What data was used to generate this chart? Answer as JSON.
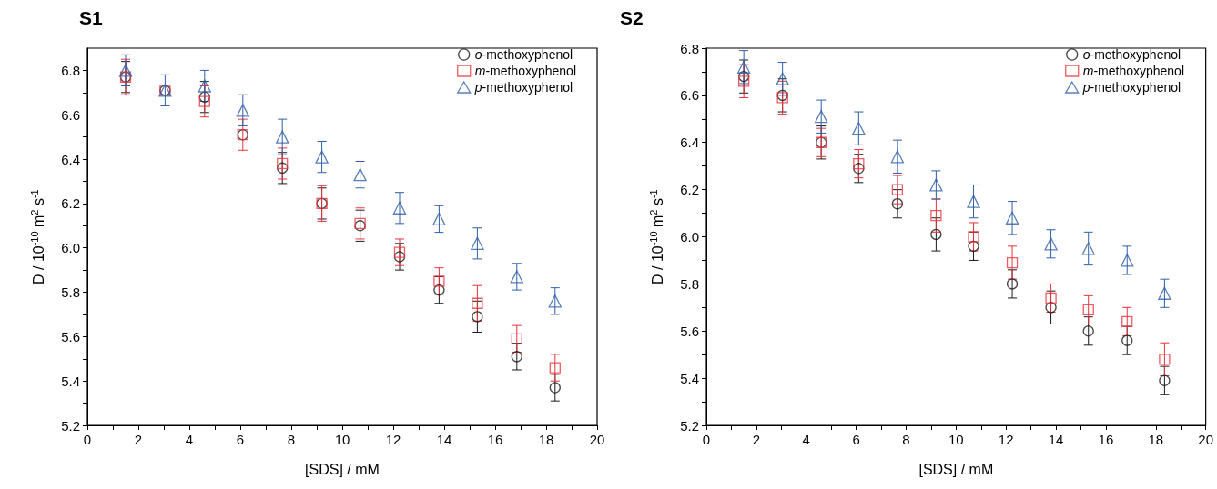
{
  "chart_data": [
    {
      "type": "scatter",
      "title": "S1",
      "xlabel": "[SDS] / mM",
      "ylabel": "D / 10$^{-10}$ m$^{2}$ s$^{-1}$",
      "x": [
        1.5,
        3.05,
        4.6,
        6.1,
        7.65,
        9.2,
        10.7,
        12.25,
        13.8,
        15.3,
        16.85,
        18.35
      ],
      "xlim": [
        0,
        20
      ],
      "xticks": [
        0,
        {
          "value": 1,
          "label": null
        },
        2,
        {
          "value": 3,
          "label": null
        },
        4,
        {
          "value": 5,
          "label": null
        },
        6,
        {
          "value": 7,
          "label": null
        },
        8,
        {
          "value": 9,
          "label": null
        },
        10,
        {
          "value": 11,
          "label": null
        },
        12,
        {
          "value": 13,
          "label": null
        },
        14,
        {
          "value": 15,
          "label": null
        },
        16,
        {
          "value": 17,
          "label": null
        },
        18,
        {
          "value": 19,
          "label": null
        },
        20
      ],
      "ylim": [
        5.2,
        6.9
      ],
      "yticks": [
        5.2,
        {
          "value": 5.3,
          "label": null
        },
        5.4,
        {
          "value": 5.5,
          "label": null
        },
        5.6,
        {
          "value": 5.7,
          "label": null
        },
        5.8,
        {
          "value": 5.9,
          "label": null
        },
        {
          "value": 6,
          "label": "6.0"
        },
        {
          "value": 6.1,
          "label": null
        },
        6.2,
        {
          "value": 6.3,
          "label": null
        },
        6.4,
        {
          "value": 6.5,
          "label": null
        },
        6.6,
        {
          "value": 6.7,
          "label": null
        },
        6.8
      ],
      "grid": false,
      "legend": "top right",
      "series": [
        {
          "name": "o-methoxyphenol",
          "color": "#1a1a1a",
          "marker": "circle",
          "values": [
            6.77,
            6.71,
            6.68,
            6.51,
            6.36,
            6.2,
            6.1,
            5.96,
            5.81,
            5.69,
            5.51,
            5.37
          ],
          "errors": [
            0.07,
            null,
            0.07,
            null,
            0.07,
            0.07,
            0.07,
            0.06,
            0.06,
            0.07,
            0.06,
            0.06
          ]
        },
        {
          "name": "m-methoxyphenol",
          "color": "#e8333c",
          "marker": "square",
          "values": [
            6.77,
            6.71,
            6.66,
            6.51,
            6.38,
            6.2,
            6.11,
            5.98,
            5.85,
            5.75,
            5.59,
            5.46
          ],
          "errors": [
            0.08,
            null,
            0.07,
            0.07,
            0.07,
            0.08,
            0.07,
            0.06,
            0.06,
            0.08,
            0.06,
            0.06
          ]
        },
        {
          "name": "p-methoxyphenol",
          "color": "#2f5fa8",
          "marker": "triangle",
          "values": [
            6.8,
            6.71,
            6.73,
            6.62,
            6.5,
            6.41,
            6.33,
            6.18,
            6.13,
            6.02,
            5.87,
            5.76
          ],
          "errors": [
            0.07,
            0.07,
            0.07,
            0.07,
            0.08,
            0.07,
            0.06,
            0.07,
            0.06,
            0.07,
            0.06,
            0.06
          ]
        }
      ]
    },
    {
      "type": "scatter",
      "title": "S2",
      "xlabel": "[SDS] / mM",
      "ylabel": "D / 10$^{-10}$ m$^{2}$ s$^{-1}$",
      "x": [
        1.5,
        3.05,
        4.6,
        6.1,
        7.65,
        9.2,
        10.7,
        12.25,
        13.8,
        15.3,
        16.85,
        18.35
      ],
      "xlim": [
        0,
        20
      ],
      "xticks": [
        0,
        {
          "value": 1,
          "label": null
        },
        2,
        {
          "value": 3,
          "label": null
        },
        4,
        {
          "value": 5,
          "label": null
        },
        6,
        {
          "value": 7,
          "label": null
        },
        8,
        {
          "value": 9,
          "label": null
        },
        10,
        {
          "value": 11,
          "label": null
        },
        12,
        {
          "value": 13,
          "label": null
        },
        14,
        {
          "value": 15,
          "label": null
        },
        16,
        {
          "value": 17,
          "label": null
        },
        18,
        {
          "value": 19,
          "label": null
        },
        20
      ],
      "ylim": [
        5.2,
        6.8
      ],
      "yticks": [
        5.2,
        {
          "value": 5.3,
          "label": null
        },
        5.4,
        {
          "value": 5.5,
          "label": null
        },
        5.6,
        {
          "value": 5.7,
          "label": null
        },
        5.8,
        {
          "value": 5.9,
          "label": null
        },
        {
          "value": 6,
          "label": "6.0"
        },
        {
          "value": 6.1,
          "label": null
        },
        6.2,
        {
          "value": 6.3,
          "label": null
        },
        6.4,
        {
          "value": 6.5,
          "label": null
        },
        6.6,
        {
          "value": 6.7,
          "label": null
        },
        6.8
      ],
      "grid": false,
      "legend": "top right",
      "series": [
        {
          "name": "o-methoxyphenol",
          "color": "#1a1a1a",
          "marker": "circle",
          "values": [
            6.68,
            6.6,
            6.4,
            6.29,
            6.14,
            6.01,
            5.96,
            5.8,
            5.7,
            5.6,
            5.56,
            5.39
          ],
          "errors": [
            0.07,
            0.07,
            0.07,
            0.06,
            0.06,
            0.07,
            0.06,
            0.06,
            0.07,
            0.06,
            0.06,
            0.06
          ]
        },
        {
          "name": "m-methoxyphenol",
          "color": "#e8333c",
          "marker": "square",
          "values": [
            6.66,
            6.59,
            6.4,
            6.31,
            6.2,
            6.09,
            6,
            5.89,
            5.74,
            5.69,
            5.64,
            5.48
          ],
          "errors": [
            0.07,
            0.07,
            0.06,
            0.06,
            0.06,
            0.07,
            0.06,
            0.07,
            0.06,
            0.06,
            0.06,
            0.07
          ]
        },
        {
          "name": "p-methoxyphenol",
          "color": "#2f5fa8",
          "marker": "triangle",
          "values": [
            6.72,
            6.67,
            6.51,
            6.46,
            6.34,
            6.22,
            6.15,
            6.08,
            5.97,
            5.95,
            5.9,
            5.76
          ],
          "errors": [
            0.07,
            0.07,
            0.07,
            0.07,
            0.07,
            0.06,
            0.07,
            0.07,
            0.06,
            0.07,
            0.06,
            0.06
          ]
        }
      ]
    }
  ]
}
